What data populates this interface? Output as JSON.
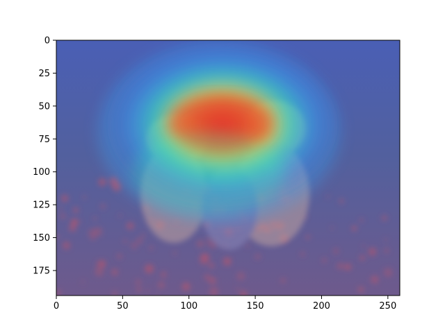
{
  "figure": {
    "type": "heatmap",
    "description_free": true,
    "x_axis": {
      "range": [
        0,
        259
      ],
      "ticks": [
        0,
        50,
        100,
        150,
        200,
        250
      ]
    },
    "y_axis": {
      "range": [
        0,
        194
      ],
      "inverted": true,
      "ticks": [
        0,
        25,
        50,
        75,
        100,
        125,
        150,
        175
      ]
    },
    "overlay": {
      "colormap": "jet",
      "opacity": 0.5
    },
    "colors": {
      "base_tint": "#4a5fb5",
      "ground_tint": "#6e5a8c",
      "poppy": "#b5556e",
      "dog": "#d4b58c",
      "heat_hot": "#e8302a",
      "heat_warm": "#f0d23a",
      "heat_mid": "#36e8b0",
      "heat_cool": "#3aa0f0",
      "heat_cold": "#3a4ad8"
    },
    "hot_region_center": {
      "x": 130,
      "y": 65
    }
  }
}
